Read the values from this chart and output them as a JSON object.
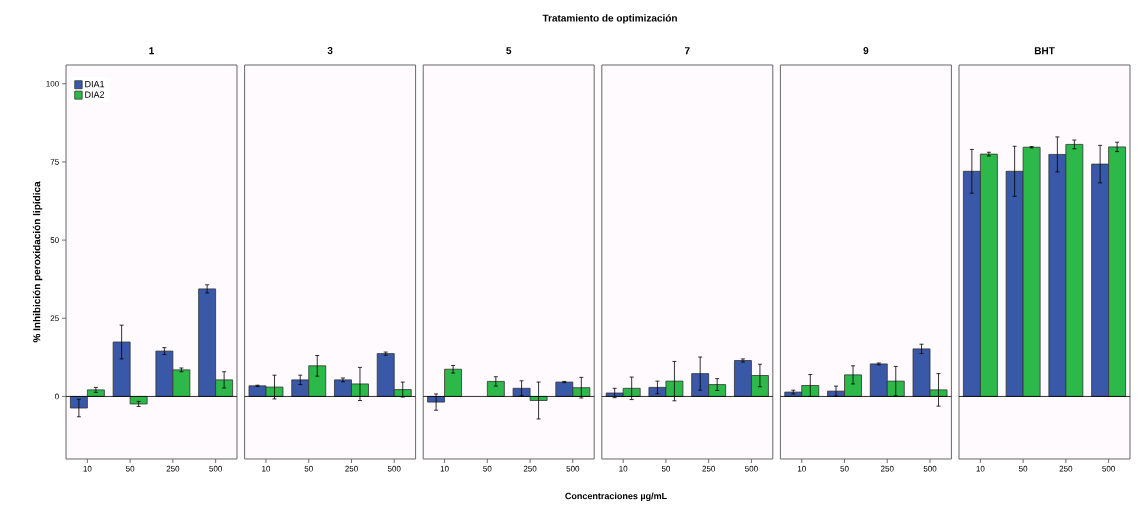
{
  "chart_data": [
    {
      "type": "bar",
      "title": "1",
      "ylabel": "% Inhibición peroxidación lipídica",
      "annotations": [
        "Tratamiento de optimización"
      ],
      "categories": [
        "10",
        "50",
        "250",
        "500"
      ],
      "ylim": [
        -20,
        106
      ],
      "yticks": [
        0,
        25,
        50,
        75,
        100
      ],
      "legend": "top left",
      "grid": false,
      "ref_lines": [
        {
          "axis": "y",
          "value": 0,
          "color": "#000000"
        }
      ],
      "series": [
        {
          "name": "DIA1",
          "color": "#3a58a8",
          "values": [
            -3.7,
            17.4,
            14.5,
            34.4
          ],
          "errors": [
            2.8,
            5.4,
            1.1,
            1.3
          ]
        },
        {
          "name": "DIA2",
          "color": "#2db84a",
          "values": [
            2.1,
            -2.4,
            8.5,
            5.3
          ],
          "errors": [
            0.8,
            0.8,
            0.6,
            2.6
          ]
        }
      ]
    },
    {
      "type": "bar",
      "title": "3",
      "categories": [
        "10",
        "50",
        "250",
        "500"
      ],
      "ylim": [
        -20,
        106
      ],
      "tick_labels": "x",
      "grid": false,
      "ref_lines": [
        {
          "axis": "y",
          "value": 0,
          "color": "#000000"
        }
      ],
      "series": [
        {
          "color": "#3a58a8",
          "values": [
            3.4,
            5.3,
            5.3,
            13.7
          ],
          "errors": [
            0.2,
            1.5,
            0.6,
            0.5
          ]
        },
        {
          "color": "#2db84a",
          "values": [
            3.0,
            9.8,
            4.0,
            2.2
          ],
          "errors": [
            3.8,
            3.3,
            5.3,
            2.4
          ]
        }
      ]
    },
    {
      "type": "bar",
      "title": "5",
      "categories": [
        "10",
        "50",
        "250",
        "500"
      ],
      "ylim": [
        -20,
        106
      ],
      "tick_labels": "x",
      "grid": false,
      "ref_lines": [
        {
          "axis": "y",
          "value": 0,
          "color": "#000000"
        }
      ],
      "series": [
        {
          "color": "#3a58a8",
          "values": [
            -1.8,
            null,
            2.6,
            4.6
          ],
          "errors": [
            2.6,
            null,
            2.4,
            0.2
          ]
        },
        {
          "color": "#2db84a",
          "values": [
            8.7,
            4.8,
            -1.3,
            2.8
          ],
          "errors": [
            1.2,
            1.5,
            5.9,
            3.3
          ]
        }
      ]
    },
    {
      "type": "bar",
      "title": "7",
      "xlabel": "Concentraciones µg/mL",
      "categories": [
        "10",
        "50",
        "250",
        "500"
      ],
      "ylim": [
        -20,
        106
      ],
      "tick_labels": "x",
      "grid": false,
      "ref_lines": [
        {
          "axis": "y",
          "value": 0,
          "color": "#000000"
        }
      ],
      "series": [
        {
          "color": "#3a58a8",
          "values": [
            1.1,
            2.9,
            7.3,
            11.5
          ],
          "errors": [
            1.5,
            2.0,
            5.3,
            0.5
          ]
        },
        {
          "color": "#2db84a",
          "values": [
            2.6,
            4.9,
            3.8,
            6.7
          ],
          "errors": [
            3.6,
            6.3,
            1.9,
            3.6
          ]
        }
      ]
    },
    {
      "type": "bar",
      "title": "9",
      "categories": [
        "10",
        "50",
        "250",
        "500"
      ],
      "ylim": [
        -20,
        106
      ],
      "tick_labels": "x",
      "grid": false,
      "ref_lines": [
        {
          "axis": "y",
          "value": 0,
          "color": "#000000"
        }
      ],
      "series": [
        {
          "color": "#3a58a8",
          "values": [
            1.4,
            1.7,
            10.4,
            15.2
          ],
          "errors": [
            0.6,
            1.6,
            0.3,
            1.5
          ]
        },
        {
          "color": "#2db84a",
          "values": [
            3.5,
            6.9,
            4.9,
            2.1
          ],
          "errors": [
            3.5,
            2.9,
            4.7,
            5.2
          ]
        }
      ]
    },
    {
      "type": "bar",
      "title": "BHT",
      "categories": [
        "10",
        "50",
        "250",
        "500"
      ],
      "ylim": [
        -20,
        106
      ],
      "tick_labels": "x",
      "grid": false,
      "ref_lines": [
        {
          "axis": "y",
          "value": 0,
          "color": "#000000"
        }
      ],
      "series": [
        {
          "color": "#3a58a8",
          "values": [
            72.0,
            72.0,
            77.4,
            74.3
          ],
          "errors": [
            7.0,
            8.0,
            5.6,
            6.0
          ]
        },
        {
          "color": "#2db84a",
          "values": [
            77.5,
            79.7,
            80.6,
            79.8
          ],
          "errors": [
            0.6,
            0.2,
            1.4,
            1.5
          ]
        }
      ]
    }
  ]
}
